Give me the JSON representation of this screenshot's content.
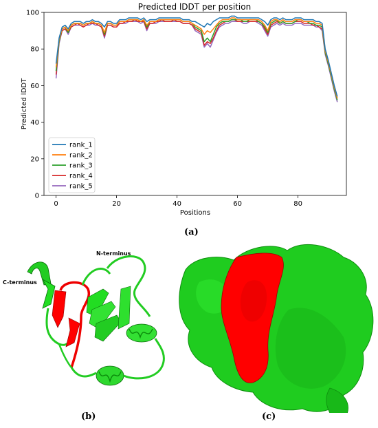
{
  "chart_data": {
    "type": "line",
    "title": "Predicted lDDT per position",
    "xlabel": "Positions",
    "ylabel": "Predicted lDDT",
    "xlim": [
      -4,
      96
    ],
    "ylim": [
      0,
      100
    ],
    "xticks": [
      0,
      20,
      40,
      60,
      80
    ],
    "yticks": [
      0,
      20,
      40,
      60,
      80,
      100
    ],
    "legend_position": "lower-left",
    "x": [
      0,
      1,
      2,
      3,
      4,
      5,
      6,
      7,
      8,
      9,
      10,
      11,
      12,
      13,
      14,
      15,
      16,
      17,
      18,
      19,
      20,
      21,
      22,
      23,
      24,
      25,
      26,
      27,
      28,
      29,
      30,
      31,
      32,
      33,
      34,
      35,
      36,
      37,
      38,
      39,
      40,
      41,
      42,
      43,
      44,
      45,
      46,
      47,
      48,
      49,
      50,
      51,
      52,
      53,
      54,
      55,
      56,
      57,
      58,
      59,
      60,
      61,
      62,
      63,
      64,
      65,
      66,
      67,
      68,
      69,
      70,
      71,
      72,
      73,
      74,
      75,
      76,
      77,
      78,
      79,
      80,
      81,
      82,
      83,
      84,
      85,
      86,
      87,
      88,
      89,
      90,
      91,
      92,
      93
    ],
    "series": [
      {
        "name": "rank_1",
        "color": "#1f77b4",
        "values": [
          72,
          86,
          92,
          93,
          91,
          94,
          95,
          95,
          95,
          94,
          95,
          95,
          96,
          95,
          95,
          94,
          92,
          95,
          95,
          94,
          94,
          96,
          96,
          96,
          97,
          97,
          97,
          97,
          96,
          97,
          95,
          96,
          96,
          96,
          97,
          97,
          97,
          97,
          97,
          97,
          97,
          97,
          96,
          96,
          96,
          95,
          95,
          94,
          93,
          92,
          94,
          93,
          95,
          96,
          97,
          97,
          97,
          97,
          98,
          98,
          97,
          97,
          97,
          97,
          97,
          97,
          97,
          97,
          96,
          95,
          93,
          96,
          97,
          97,
          96,
          97,
          96,
          96,
          96,
          97,
          97,
          97,
          96,
          96,
          96,
          96,
          95,
          95,
          94,
          80,
          74,
          67,
          60,
          54
        ]
      },
      {
        "name": "rank_2",
        "color": "#ff7f0e",
        "values": [
          70,
          85,
          91,
          92,
          90,
          93,
          94,
          94,
          94,
          93,
          94,
          94,
          95,
          94,
          94,
          93,
          89,
          94,
          94,
          93,
          93,
          95,
          95,
          95,
          96,
          96,
          96,
          96,
          95,
          96,
          93,
          95,
          95,
          95,
          96,
          96,
          96,
          96,
          96,
          96,
          96,
          96,
          95,
          95,
          95,
          94,
          93,
          92,
          91,
          88,
          90,
          89,
          91,
          93,
          95,
          96,
          96,
          96,
          97,
          97,
          96,
          96,
          96,
          96,
          96,
          96,
          96,
          96,
          95,
          93,
          90,
          95,
          96,
          96,
          95,
          96,
          95,
          95,
          95,
          96,
          96,
          96,
          95,
          95,
          95,
          95,
          94,
          94,
          93,
          79,
          73,
          66,
          59,
          53
        ]
      },
      {
        "name": "rank_3",
        "color": "#2ca02c",
        "values": [
          68,
          84,
          91,
          92,
          89,
          93,
          94,
          94,
          94,
          93,
          94,
          94,
          95,
          94,
          94,
          93,
          88,
          94,
          94,
          93,
          93,
          95,
          95,
          95,
          96,
          96,
          96,
          96,
          95,
          96,
          92,
          95,
          95,
          95,
          96,
          96,
          96,
          96,
          96,
          96,
          96,
          96,
          95,
          95,
          95,
          94,
          92,
          91,
          90,
          84,
          86,
          84,
          88,
          92,
          94,
          95,
          95,
          95,
          96,
          96,
          96,
          96,
          95,
          95,
          96,
          96,
          96,
          95,
          94,
          92,
          89,
          94,
          95,
          96,
          94,
          95,
          94,
          94,
          94,
          95,
          96,
          96,
          95,
          95,
          94,
          94,
          93,
          93,
          92,
          78,
          72,
          65,
          58,
          52
        ]
      },
      {
        "name": "rank_4",
        "color": "#d62728",
        "values": [
          66,
          84,
          90,
          91,
          89,
          92,
          93,
          94,
          93,
          92,
          93,
          94,
          94,
          94,
          93,
          92,
          87,
          93,
          93,
          92,
          92,
          94,
          94,
          95,
          95,
          95,
          96,
          95,
          95,
          95,
          91,
          94,
          94,
          95,
          95,
          96,
          95,
          95,
          95,
          96,
          95,
          95,
          94,
          94,
          94,
          93,
          91,
          90,
          89,
          82,
          84,
          83,
          86,
          90,
          93,
          94,
          95,
          95,
          96,
          96,
          95,
          95,
          95,
          95,
          95,
          95,
          95,
          95,
          94,
          91,
          88,
          93,
          94,
          95,
          94,
          95,
          94,
          94,
          94,
          95,
          95,
          95,
          94,
          94,
          94,
          93,
          93,
          92,
          91,
          78,
          72,
          66,
          59,
          53
        ]
      },
      {
        "name": "rank_5",
        "color": "#9467bd",
        "values": [
          64,
          83,
          90,
          91,
          88,
          92,
          93,
          93,
          93,
          92,
          93,
          93,
          94,
          93,
          93,
          92,
          86,
          93,
          93,
          92,
          92,
          94,
          94,
          94,
          95,
          95,
          95,
          95,
          94,
          95,
          90,
          94,
          94,
          94,
          95,
          95,
          95,
          95,
          95,
          95,
          95,
          95,
          94,
          94,
          94,
          93,
          90,
          89,
          88,
          81,
          83,
          81,
          85,
          89,
          92,
          93,
          94,
          94,
          95,
          95,
          95,
          95,
          94,
          94,
          95,
          95,
          95,
          94,
          93,
          90,
          87,
          92,
          93,
          94,
          93,
          94,
          93,
          93,
          93,
          94,
          94,
          94,
          93,
          93,
          93,
          93,
          92,
          92,
          90,
          77,
          71,
          64,
          57,
          51
        ]
      }
    ]
  },
  "panel_labels": {
    "a": "(a)",
    "b": "(b)",
    "c": "(c)"
  },
  "structure_labels": {
    "c_terminus": "C-terminus",
    "n_terminus": "N-terminus"
  },
  "colors": {
    "protein": "#22dd22",
    "highlight": "#ff0000",
    "surface_dark": "#14a814"
  }
}
